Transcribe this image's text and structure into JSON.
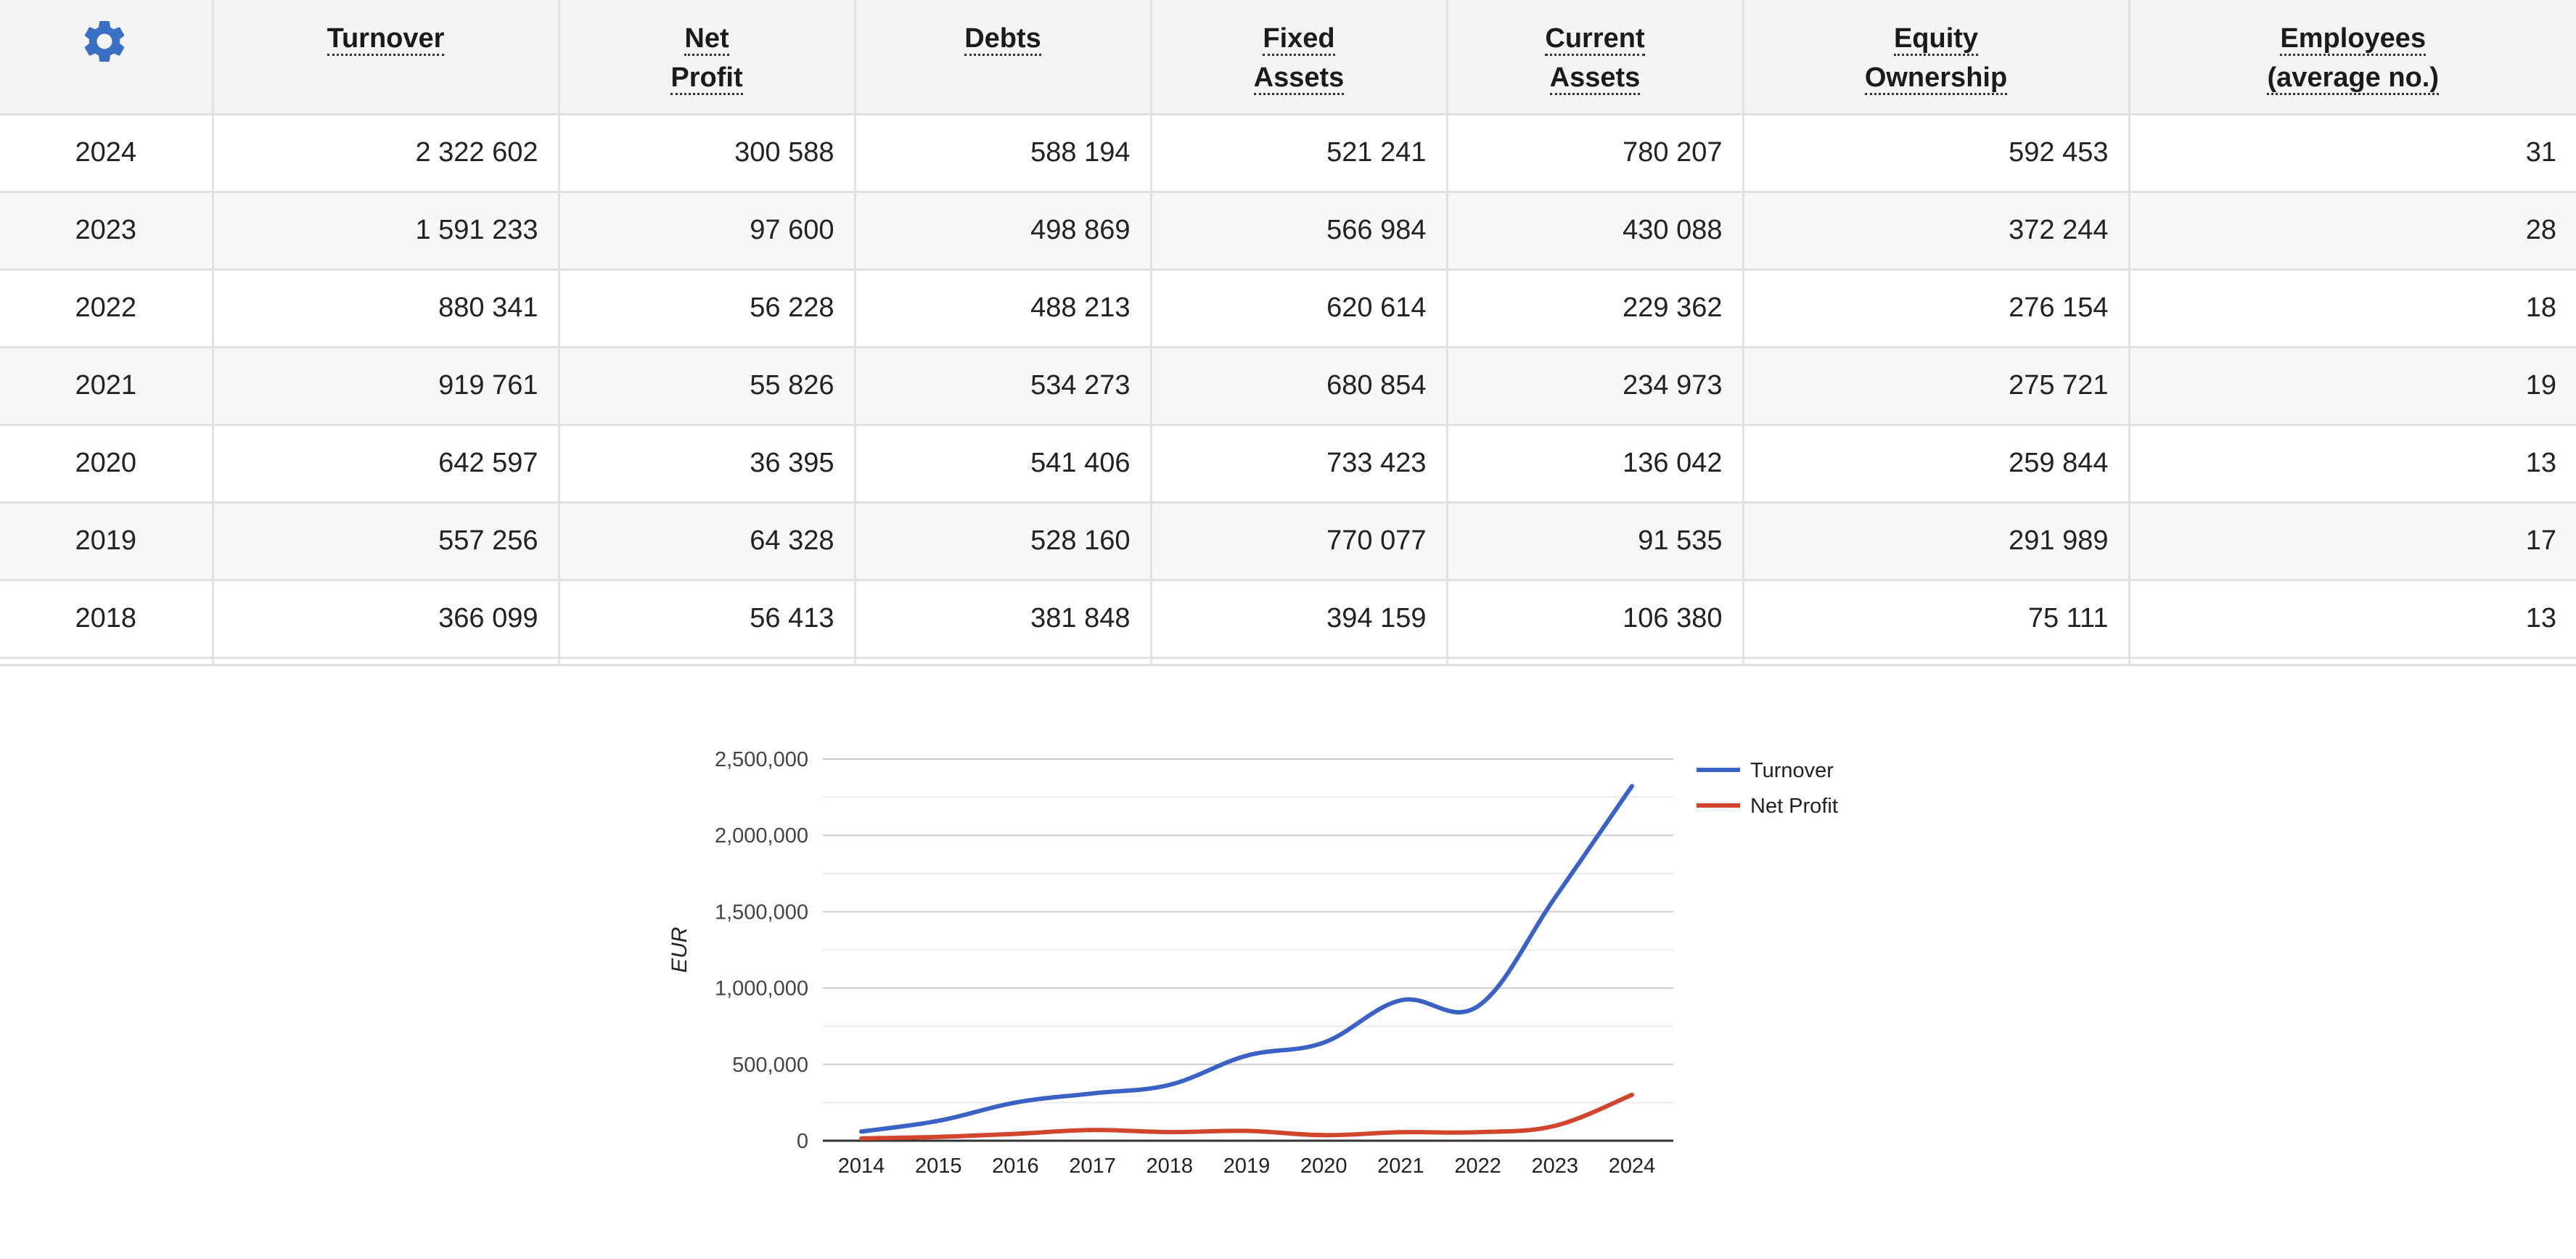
{
  "toolbar": {
    "settings_icon": "gear-icon",
    "accent_color": "#3a6fc4"
  },
  "table": {
    "headers": [
      {
        "lines": [
          "Turnover"
        ]
      },
      {
        "lines": [
          "Net",
          "Profit"
        ]
      },
      {
        "lines": [
          "Debts"
        ]
      },
      {
        "lines": [
          "Fixed",
          "Assets"
        ]
      },
      {
        "lines": [
          "Current",
          "Assets"
        ]
      },
      {
        "lines": [
          "Equity",
          "Ownership"
        ]
      },
      {
        "lines": [
          "Employees",
          "(average no.)"
        ]
      }
    ],
    "rows": [
      {
        "year": "2024",
        "values": [
          "2 322 602",
          "300 588",
          "588 194",
          "521 241",
          "780 207",
          "592 453",
          "31"
        ]
      },
      {
        "year": "2023",
        "values": [
          "1 591 233",
          "97 600",
          "498 869",
          "566 984",
          "430 088",
          "372 244",
          "28"
        ]
      },
      {
        "year": "2022",
        "values": [
          "880 341",
          "56 228",
          "488 213",
          "620 614",
          "229 362",
          "276 154",
          "18"
        ]
      },
      {
        "year": "2021",
        "values": [
          "919 761",
          "55 826",
          "534 273",
          "680 854",
          "234 973",
          "275 721",
          "19"
        ]
      },
      {
        "year": "2020",
        "values": [
          "642 597",
          "36 395",
          "541 406",
          "733 423",
          "136 042",
          "259 844",
          "13"
        ]
      },
      {
        "year": "2019",
        "values": [
          "557 256",
          "64 328",
          "528 160",
          "770 077",
          "91 535",
          "291 989",
          "17"
        ]
      },
      {
        "year": "2018",
        "values": [
          "366 099",
          "56 413",
          "381 848",
          "394 159",
          "106 380",
          "75 111",
          "13"
        ]
      }
    ]
  },
  "chart_data": {
    "type": "line",
    "x": [
      "2014",
      "2015",
      "2016",
      "2017",
      "2018",
      "2019",
      "2020",
      "2021",
      "2022",
      "2023",
      "2024"
    ],
    "series": [
      {
        "name": "Turnover",
        "color": "#3a62c4",
        "values": [
          60000,
          130000,
          250000,
          310000,
          366099,
          557256,
          642597,
          919761,
          880341,
          1591233,
          2322602
        ]
      },
      {
        "name": "Net Profit",
        "color": "#d0452b",
        "values": [
          15000,
          25000,
          45000,
          70000,
          56413,
          64328,
          36395,
          55826,
          56228,
          97600,
          300588
        ]
      }
    ],
    "ylabel": "EUR",
    "ylim": [
      0,
      2500000
    ],
    "yticks": [
      "0",
      "500,000",
      "1,000,000",
      "1,500,000",
      "2,000,000",
      "2,500,000"
    ],
    "grid": true,
    "legend": "right"
  }
}
